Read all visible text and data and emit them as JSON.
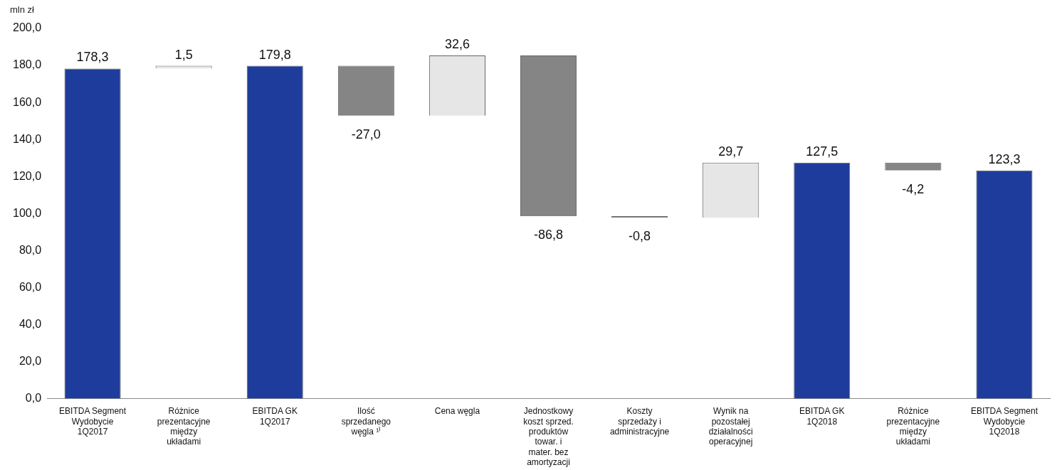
{
  "chart_data": {
    "type": "bar",
    "ylabel": "mln zł",
    "categories": [
      "EBITDA Segment Wydobycie 1Q2017",
      "Różnice prezentacyjne między układami",
      "EBITDA GK 1Q2017",
      "Ilość sprzedanego węgla ¹⁾",
      "Cena węgla",
      "Jednostkowy koszt sprzed. produktów towar. i mater. bez amortyzacji",
      "Koszty sprzedaży i administracyjne",
      "Wynik na pozostałej działalności operacyjnej",
      "EBITDA GK 1Q2018",
      "Różnice prezentacyjne między układami",
      "EBITDA Segment Wydobycie 1Q2018"
    ],
    "values": [
      178.3,
      1.5,
      179.8,
      -27.0,
      32.6,
      -86.8,
      -0.8,
      29.7,
      127.5,
      -4.2,
      123.3
    ],
    "base": [
      0,
      178.3,
      0,
      179.8,
      152.8,
      185.4,
      98.6,
      97.8,
      0,
      127.5,
      0
    ],
    "colors": [
      "#1e3c9c",
      "#e6e6e6",
      "#1e3c9c",
      "#858585",
      "#e6e6e6",
      "#858585",
      "#858585",
      "#e6e6e6",
      "#1e3c9c",
      "#858585",
      "#1e3c9c"
    ],
    "value_labels": [
      "178,3",
      "1,5",
      "179,8",
      "-27,0",
      "32,6",
      "-86,8",
      "-0,8",
      "29,7",
      "127,5",
      "-4,2",
      "123,3"
    ],
    "ylim": [
      0,
      200
    ],
    "yticks": [
      {
        "value": 0,
        "label": "0,0"
      },
      {
        "value": 20,
        "label": "20,0"
      },
      {
        "value": 40,
        "label": "40,0"
      },
      {
        "value": 60,
        "label": "60,0"
      },
      {
        "value": 80,
        "label": "80,0"
      },
      {
        "value": 100,
        "label": "100,0"
      },
      {
        "value": 120,
        "label": "120,0"
      },
      {
        "value": 140,
        "label": "140,0"
      },
      {
        "value": 160,
        "label": "160,0"
      },
      {
        "value": 180,
        "label": "180,0"
      },
      {
        "value": 200,
        "label": "200,0"
      }
    ],
    "grid": false,
    "legend": false
  }
}
